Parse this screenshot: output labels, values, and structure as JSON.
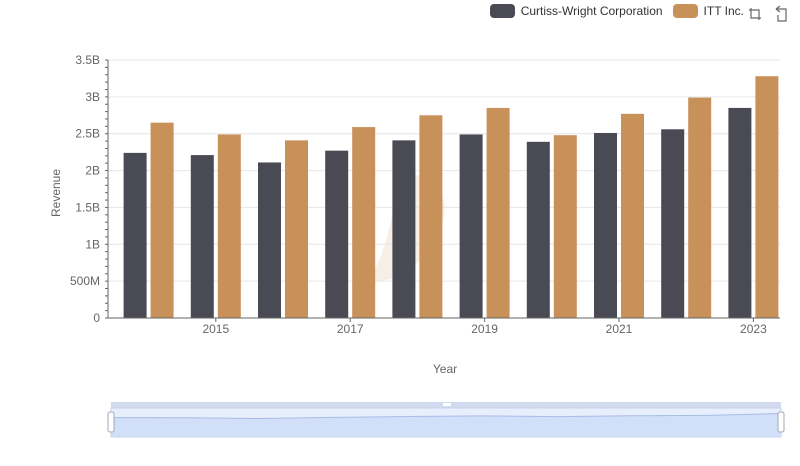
{
  "legend": {
    "items": [
      {
        "label": "Curtiss-Wright Corporation",
        "color": "#4a4a55"
      },
      {
        "label": "ITT Inc.",
        "color": "#c8915a"
      }
    ]
  },
  "toolbox": {
    "icons": [
      "zoom-select-icon",
      "zoom-reset-icon"
    ]
  },
  "watermark_color": "#f5ebe0",
  "chart_data": {
    "type": "bar",
    "xlabel": "Year",
    "ylabel": "Revenue",
    "ylim": [
      0,
      3500000000
    ],
    "y_ticks": [
      0,
      500000000,
      1000000000,
      1500000000,
      2000000000,
      2500000000,
      3000000000,
      3500000000
    ],
    "y_tick_labels": [
      "0",
      "500M",
      "1B",
      "1.5B",
      "2B",
      "2.5B",
      "3B",
      "3.5B"
    ],
    "categories": [
      "2014",
      "2015",
      "2016",
      "2017",
      "2018",
      "2019",
      "2020",
      "2021",
      "2022",
      "2023"
    ],
    "x_tick_labels": [
      "2015",
      "2017",
      "2019",
      "2021",
      "2023"
    ],
    "grid": true,
    "legend_position": "top-right",
    "series": [
      {
        "name": "Curtiss-Wright Corporation",
        "color": "#4a4a55",
        "values": [
          2240000000,
          2210000000,
          2110000000,
          2270000000,
          2410000000,
          2490000000,
          2390000000,
          2510000000,
          2560000000,
          2850000000
        ]
      },
      {
        "name": "ITT Inc.",
        "color": "#c8915a",
        "values": [
          2650000000,
          2490000000,
          2410000000,
          2590000000,
          2750000000,
          2850000000,
          2480000000,
          2770000000,
          2990000000,
          3280000000
        ]
      }
    ]
  }
}
